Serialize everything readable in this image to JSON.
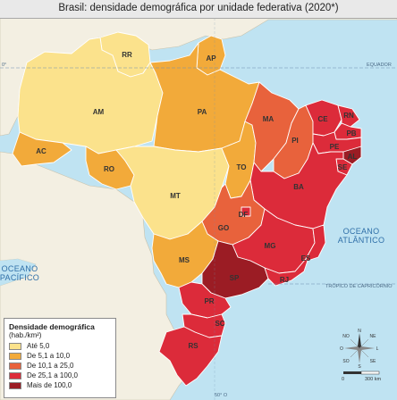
{
  "title": "Brasil: densidade demográfica por unidade federativa (2020*)",
  "colors": {
    "class1": "#fbe28c",
    "class2": "#f2aa3a",
    "class3": "#e8623c",
    "class4": "#dc2b3a",
    "class5": "#9b1c24",
    "ocean": "#bfe3f2",
    "neighbor": "#f3efe2"
  },
  "states": {
    "RR": "RR",
    "AP": "AP",
    "AM": "AM",
    "PA": "PA",
    "MA": "MA",
    "CE": "CE",
    "RN": "RN",
    "PB": "PB",
    "PI": "PI",
    "PE": "PE",
    "AL": "AL",
    "SE": "SE",
    "AC": "AC",
    "RO": "RO",
    "TO": "TO",
    "BA": "BA",
    "MT": "MT",
    "DF": "DF",
    "GO": "GO",
    "MG": "MG",
    "ES": "ES",
    "MS": "MS",
    "SP": "SP",
    "RJ": "RJ",
    "PR": "PR",
    "SC": "SC",
    "RS": "RS"
  },
  "oceans": {
    "atlantic_line1": "OCEANO",
    "atlantic_line2": "ATLÂNTICO",
    "pacific_line1": "OCEANO",
    "pacific_line2": "PACÍFICO"
  },
  "lines": {
    "equator": "EQUADOR",
    "equator_degree": "0°",
    "capricorn": "TRÓPICO DE CAPRICÓRNIO",
    "meridian": "50° O"
  },
  "legend": {
    "title": "Densidade demográfica",
    "unit": "(hab./km²)",
    "items": [
      {
        "label": "Até 5,0",
        "color": "#fbe28c"
      },
      {
        "label": "De 5,1 a 10,0",
        "color": "#f2aa3a"
      },
      {
        "label": "De 10,1 a 25,0",
        "color": "#e8623c"
      },
      {
        "label": "De 25,1 a 100,0",
        "color": "#dc2b3a"
      },
      {
        "label": "Mais de 100,0",
        "color": "#9b1c24"
      }
    ]
  },
  "compass": {
    "n": "N",
    "s": "S",
    "e": "L",
    "w": "O",
    "ne": "NE",
    "no": "NO",
    "se": "SE",
    "so": "SO"
  },
  "scale": {
    "zero": "0",
    "distance": "300 km"
  }
}
